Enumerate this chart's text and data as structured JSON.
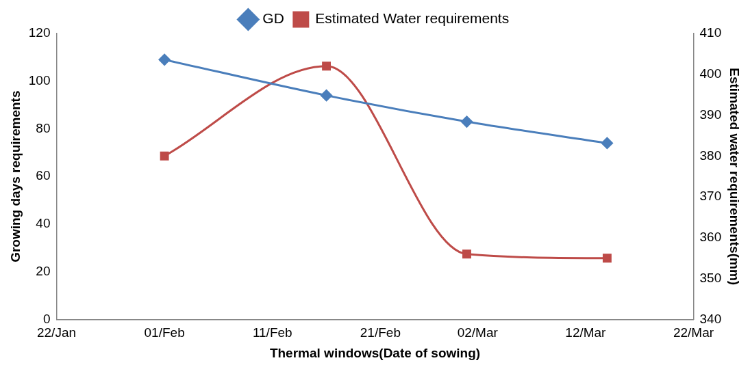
{
  "chart_data": {
    "type": "line",
    "xlabel": "Thermal windows(Date of sowing)",
    "ylabel": "Growing days requirements",
    "y2label": "Estimated water requirements(mm)",
    "x": [
      "--02-01",
      "--02-16",
      "--03-01",
      "--03-14"
    ],
    "series": [
      {
        "name": "GD",
        "color": "#4a7ebb",
        "values": [
          109,
          94,
          83,
          74
        ],
        "marker": "diamond"
      },
      {
        "name": "Estimated Water requirements",
        "color": "#be4b48",
        "values": [
          380,
          402,
          356,
          355
        ],
        "marker": "square",
        "axis": "y2"
      }
    ],
    "xlim": [
      "--01-22",
      "--03-22"
    ],
    "xticks": [
      {
        "value": "--01-22",
        "label": "22/Jan"
      },
      {
        "value": "--02-01",
        "label": "01/Feb"
      },
      {
        "value": "--02-11",
        "label": "11/Feb"
      },
      {
        "value": "--02-21",
        "label": "21/Feb"
      },
      {
        "value": "--03-02",
        "label": "02/Mar"
      },
      {
        "value": "--03-12",
        "label": "12/Mar"
      },
      {
        "value": "--03-22",
        "label": "22/Mar"
      }
    ],
    "ylim": [
      0,
      120
    ],
    "yticks": [
      0,
      20,
      40,
      60,
      80,
      100,
      120
    ],
    "y2lim": [
      340,
      410
    ],
    "y2ticks": [
      340,
      350,
      360,
      370,
      380,
      390,
      400,
      410
    ],
    "grid": false,
    "legend": "top"
  }
}
